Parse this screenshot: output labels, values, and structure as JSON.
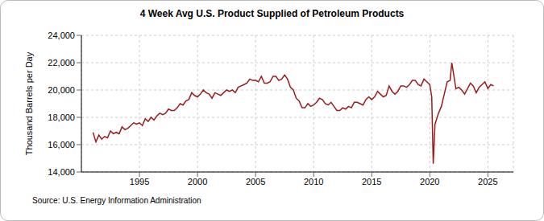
{
  "chart_data": {
    "type": "line",
    "title": "4 Week Avg U.S. Product Supplied of Petroleum Products",
    "y_label": "Thousand Barrels per Day",
    "source": "Source: U.S. Energy Information Administration",
    "x": [
      1991.0,
      1991.25,
      1991.5,
      1991.75,
      1992.0,
      1992.25,
      1992.5,
      1992.75,
      1993.0,
      1993.25,
      1993.5,
      1993.75,
      1994.0,
      1994.25,
      1994.5,
      1994.75,
      1995.0,
      1995.25,
      1995.5,
      1995.75,
      1996.0,
      1996.25,
      1996.5,
      1996.75,
      1997.0,
      1997.25,
      1997.5,
      1997.75,
      1998.0,
      1998.25,
      1998.5,
      1998.75,
      1999.0,
      1999.25,
      1999.5,
      1999.75,
      2000.0,
      2000.25,
      2000.5,
      2000.75,
      2001.0,
      2001.25,
      2001.5,
      2001.75,
      2002.0,
      2002.25,
      2002.5,
      2002.75,
      2003.0,
      2003.25,
      2003.5,
      2003.75,
      2004.0,
      2004.25,
      2004.5,
      2004.75,
      2005.0,
      2005.25,
      2005.5,
      2005.75,
      2006.0,
      2006.25,
      2006.5,
      2006.75,
      2007.0,
      2007.25,
      2007.5,
      2007.75,
      2008.0,
      2008.25,
      2008.5,
      2008.75,
      2009.0,
      2009.25,
      2009.5,
      2009.75,
      2010.0,
      2010.25,
      2010.5,
      2010.75,
      2011.0,
      2011.25,
      2011.5,
      2011.75,
      2012.0,
      2012.25,
      2012.5,
      2012.75,
      2013.0,
      2013.25,
      2013.5,
      2013.75,
      2014.0,
      2014.25,
      2014.5,
      2014.75,
      2015.0,
      2015.25,
      2015.5,
      2015.75,
      2016.0,
      2016.25,
      2016.5,
      2016.75,
      2017.0,
      2017.25,
      2017.5,
      2017.75,
      2018.0,
      2018.25,
      2018.5,
      2018.75,
      2019.0,
      2019.25,
      2019.5,
      2019.75,
      2020.0,
      2020.17,
      2020.3,
      2020.45,
      2020.75,
      2021.0,
      2021.25,
      2021.5,
      2021.75,
      2021.9,
      2022.25,
      2022.5,
      2022.75,
      2023.0,
      2023.25,
      2023.5,
      2023.75,
      2024.0,
      2024.25,
      2024.5,
      2024.75,
      2025.0,
      2025.25,
      2025.5
    ],
    "values": [
      16900,
      16200,
      16700,
      16400,
      16600,
      16500,
      17000,
      16800,
      16900,
      16800,
      17300,
      17100,
      17200,
      17400,
      17600,
      17500,
      17600,
      17400,
      17900,
      17700,
      18000,
      17800,
      18100,
      18300,
      18200,
      18300,
      18600,
      18500,
      18500,
      18700,
      19000,
      18900,
      19200,
      19300,
      19800,
      19600,
      19500,
      19700,
      20000,
      19800,
      19700,
      19400,
      19800,
      19700,
      19600,
      19800,
      20000,
      19900,
      20000,
      19800,
      20200,
      20300,
      20400,
      20500,
      20800,
      20700,
      20700,
      20600,
      21000,
      20500,
      20500,
      20600,
      21000,
      21000,
      20700,
      20800,
      21100,
      20800,
      20200,
      20000,
      19400,
      19200,
      18700,
      18700,
      19000,
      18800,
      18900,
      19100,
      19400,
      19300,
      19000,
      18900,
      19100,
      18800,
      18500,
      18500,
      18700,
      18600,
      18800,
      18700,
      19100,
      19100,
      19000,
      18900,
      19300,
      19500,
      19300,
      19500,
      19900,
      19700,
      19500,
      19600,
      20300,
      19900,
      19700,
      19900,
      20300,
      20300,
      20200,
      20400,
      20700,
      20700,
      20400,
      20300,
      20800,
      20600,
      20400,
      19500,
      14600,
      17500,
      18300,
      18800,
      19700,
      20600,
      20700,
      22000,
      20100,
      20200,
      20000,
      19700,
      20100,
      20500,
      20300,
      19800,
      20200,
      20400,
      20600,
      20100,
      20400,
      20300
    ],
    "color": "#9b1c1c",
    "line_style": "solid",
    "xlim": [
      1990.0,
      2027.2
    ],
    "xticks": [
      1995,
      2000,
      2005,
      2010,
      2015,
      2020,
      2025
    ],
    "ylim": [
      14000,
      24000
    ],
    "yticks": [
      {
        "value": 14000,
        "label": "14,000"
      },
      {
        "value": 16000,
        "label": "16,000"
      },
      {
        "value": 18000,
        "label": "18,000"
      },
      {
        "value": 20000,
        "label": "20,000"
      },
      {
        "value": 22000,
        "label": "22,000"
      },
      {
        "value": 24000,
        "label": "24,000"
      }
    ],
    "grid": true
  }
}
